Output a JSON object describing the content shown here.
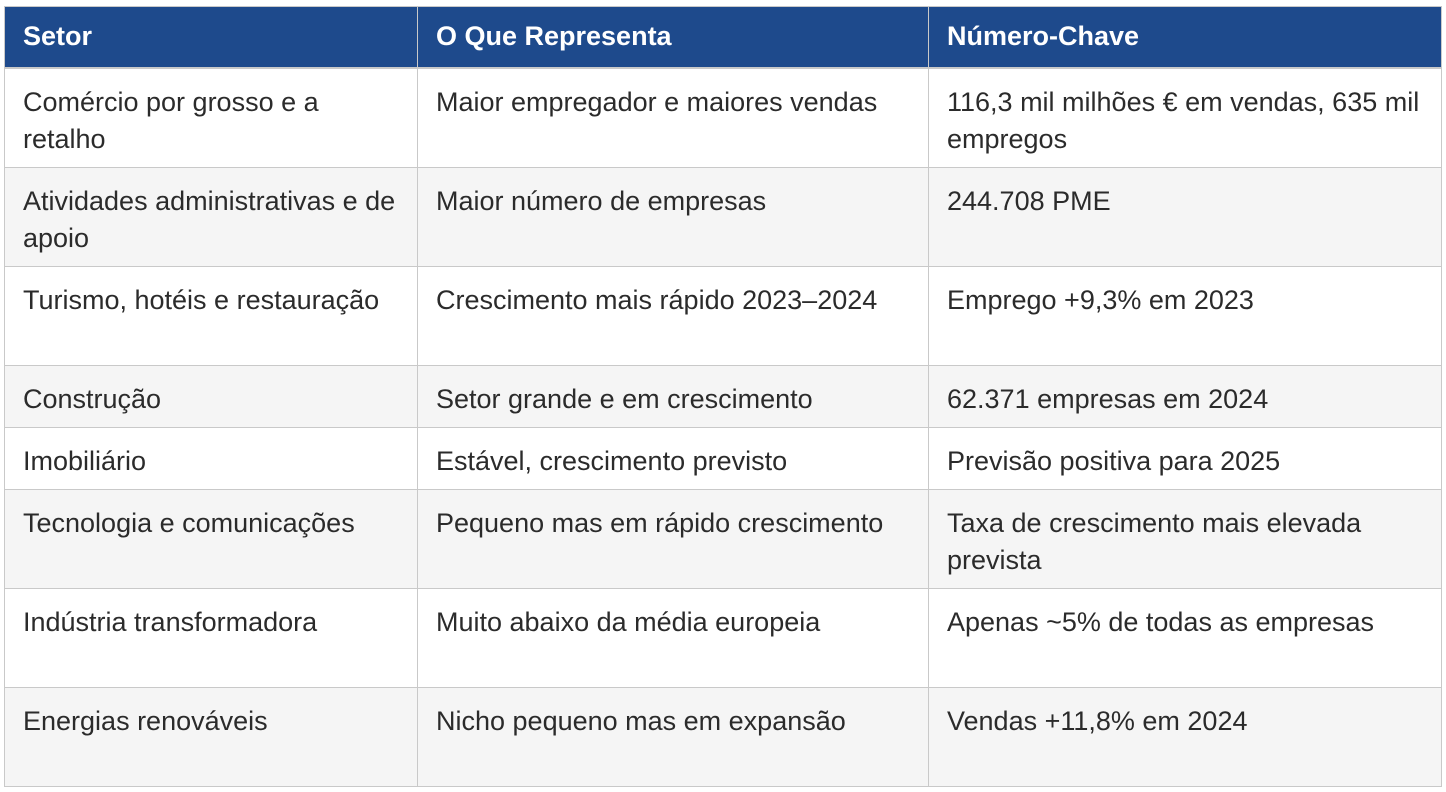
{
  "table": {
    "headers": [
      "Setor",
      "O Que Representa",
      "Número-Chave"
    ],
    "rows": [
      {
        "setor": "Comércio por grosso e a retalho",
        "representa": "Maior empregador e maiores vendas",
        "numero": "116,3 mil milhões € em vendas, 635 mil empregos"
      },
      {
        "setor": "Atividades administrativas e de apoio",
        "representa": "Maior número de empresas",
        "numero": "244.708 PME"
      },
      {
        "setor": "Turismo, hotéis e restauração",
        "representa": "Crescimento mais rápido 2023–2024",
        "numero": "Emprego +9,3% em 2023"
      },
      {
        "setor": "Construção",
        "representa": "Setor grande e em crescimento",
        "numero": "62.371 empresas em 2024"
      },
      {
        "setor": "Imobiliário",
        "representa": "Estável, crescimento previsto",
        "numero": "Previsão positiva para 2025"
      },
      {
        "setor": "Tecnologia e comunicações",
        "representa": "Pequeno mas em rápido crescimento",
        "numero": "Taxa de crescimento mais elevada prevista"
      },
      {
        "setor": "Indústria transformadora",
        "representa": "Muito abaixo da média europeia",
        "numero": "Apenas ~5% de todas as empresas"
      },
      {
        "setor": "Energias renováveis",
        "representa": "Nicho pequeno mas em expansão",
        "numero": "Vendas +11,8% em 2024"
      }
    ]
  },
  "colors": {
    "header_bg": "#1e4a8c",
    "header_text": "#ffffff",
    "row_alt_bg": "#f5f5f5",
    "border": "#c9c9c9"
  }
}
